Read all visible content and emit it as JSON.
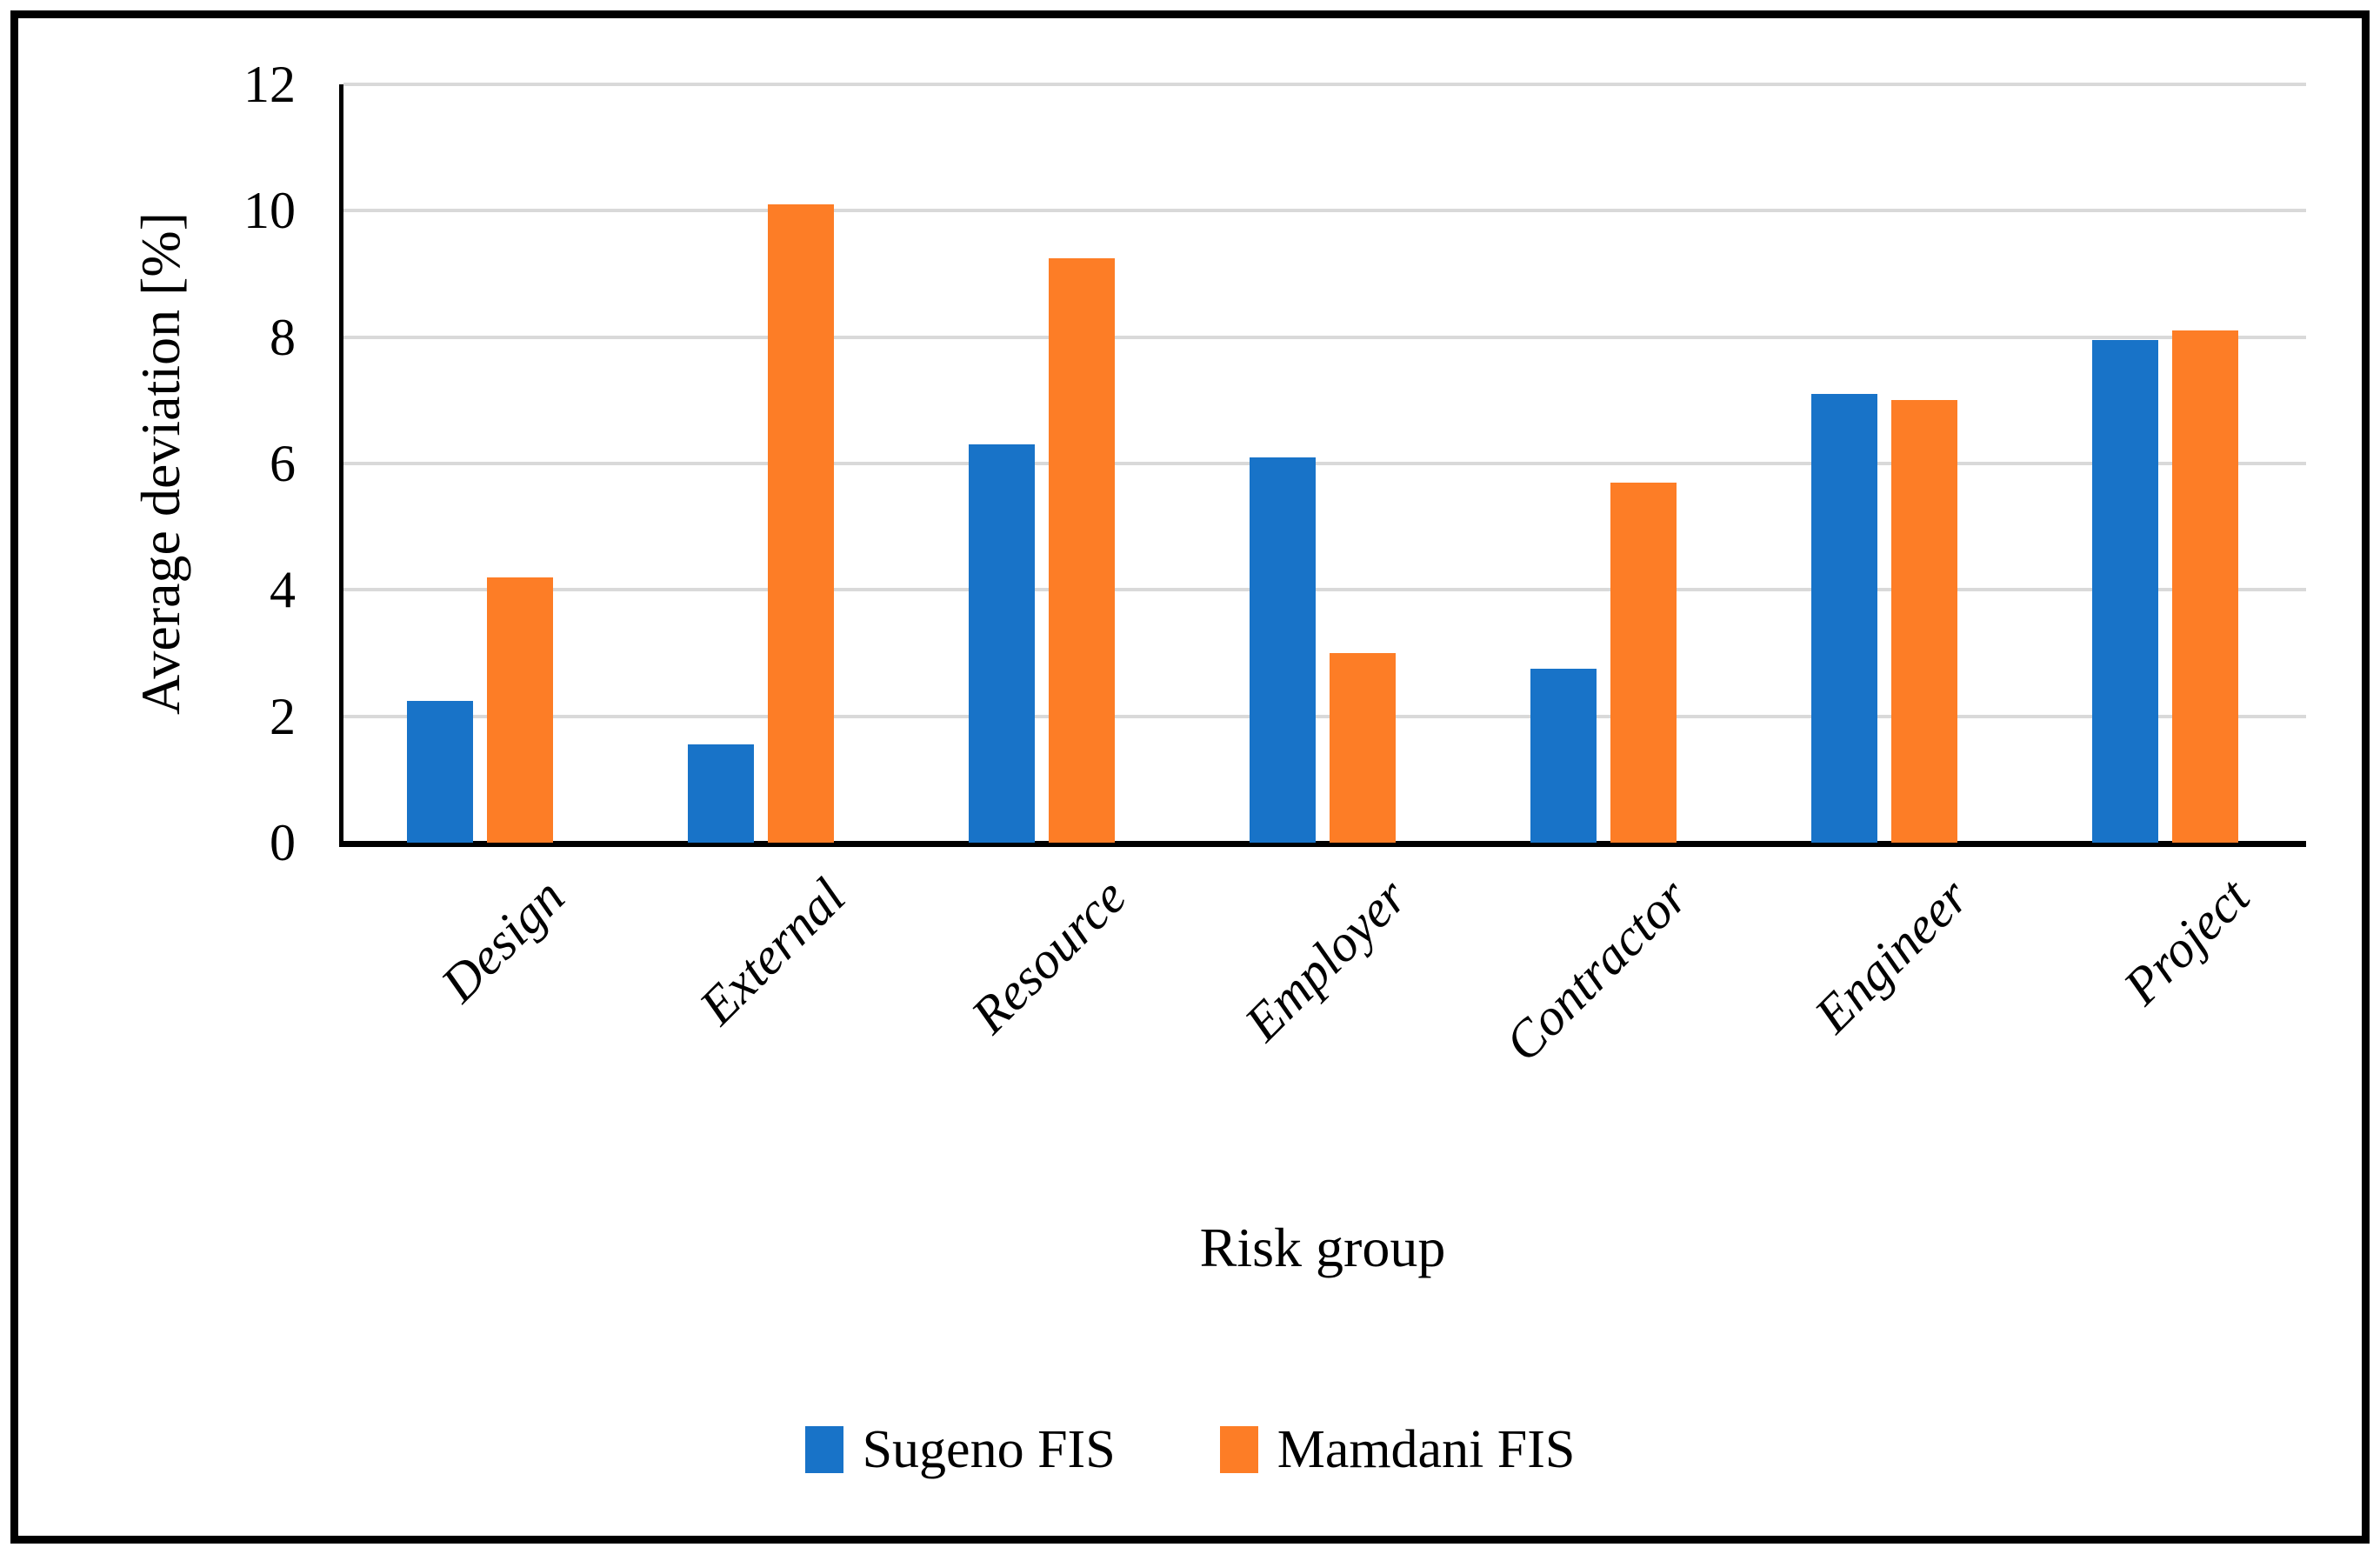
{
  "chart_data": {
    "type": "bar",
    "title": "",
    "categories": [
      "Design",
      "External",
      "Resource",
      "Employer",
      "Contractor",
      "Engineer",
      "Project"
    ],
    "series": [
      {
        "name": "Sugeno FIS",
        "color": "#1873C8",
        "values": [
          2.25,
          1.55,
          6.3,
          6.1,
          2.75,
          7.1,
          7.95
        ]
      },
      {
        "name": "Mamdani FIS",
        "color": "#FD7D26",
        "values": [
          4.2,
          10.1,
          9.25,
          3.0,
          5.7,
          7.0,
          8.1
        ]
      }
    ],
    "xlabel": "Risk group",
    "ylabel": "Average deviation [%]",
    "ylim": [
      0,
      12
    ],
    "yticks": [
      0,
      2,
      4,
      6,
      8,
      10,
      12
    ],
    "grid": true,
    "gridline_color": "#D9D9D9",
    "axis_color": "#000000",
    "legend_position": "bottom",
    "bar_orientation": "vertical"
  }
}
